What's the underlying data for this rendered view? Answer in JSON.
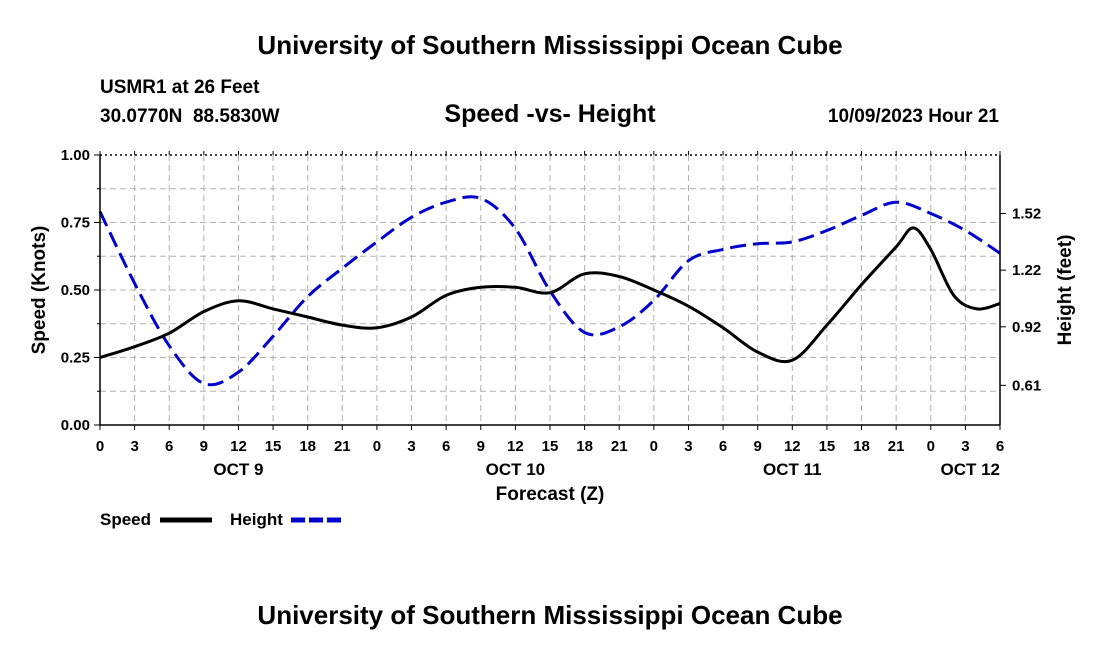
{
  "page": {
    "title_top": "University of Southern Mississippi Ocean Cube",
    "title_bottom": "University of Southern Mississippi Ocean Cube",
    "station": "USMR1 at 26 Feet",
    "coords": "30.0770N  88.5830W",
    "datetime": "10/09/2023 Hour 21"
  },
  "chart_data": {
    "type": "line",
    "title": "Speed -vs- Height",
    "xlabel": "Forecast (Z)",
    "ylabel": "Speed (Knots)",
    "y2label": "Height (feet)",
    "grid": true,
    "x_unit": "forecast hours from OCT 9 00Z",
    "xlim": [
      0,
      78
    ],
    "ylim": [
      0,
      1.0
    ],
    "y2lim": [
      0.4,
      1.83
    ],
    "yticks": [
      "0.00",
      "0.25",
      "0.50",
      "0.75",
      "1.00"
    ],
    "y2ticks": [
      "0.61",
      "0.92",
      "1.22",
      "1.52"
    ],
    "xticks": [
      "0",
      "3",
      "6",
      "9",
      "12",
      "15",
      "18",
      "21",
      "0",
      "3",
      "6",
      "9",
      "12",
      "15",
      "18",
      "21",
      "0",
      "3",
      "6",
      "9",
      "12",
      "15",
      "18",
      "21",
      "0",
      "3",
      "6"
    ],
    "day_labels": [
      {
        "label": "OCT 9",
        "hour": 12
      },
      {
        "label": "OCT 10",
        "hour": 36
      },
      {
        "label": "OCT 11",
        "hour": 60
      },
      {
        "label": "OCT 12",
        "hour": 78
      }
    ],
    "series": [
      {
        "name": "Speed",
        "axis": "left",
        "color": "#000000",
        "style": "solid",
        "x": [
          0,
          3,
          6,
          9,
          12,
          15,
          18,
          21,
          24,
          27,
          30,
          33,
          36,
          39,
          42,
          45,
          48,
          51,
          54,
          57,
          60,
          63,
          66,
          69,
          70.5,
          72,
          74,
          76,
          78
        ],
        "values": [
          0.25,
          0.29,
          0.34,
          0.42,
          0.46,
          0.43,
          0.4,
          0.37,
          0.36,
          0.4,
          0.48,
          0.51,
          0.51,
          0.49,
          0.56,
          0.55,
          0.5,
          0.44,
          0.36,
          0.27,
          0.24,
          0.37,
          0.52,
          0.66,
          0.73,
          0.65,
          0.48,
          0.43,
          0.45
        ]
      },
      {
        "name": "Height",
        "axis": "right",
        "color": "#0000cc",
        "style": "dashed",
        "x": [
          0,
          3,
          6,
          9,
          12,
          15,
          18,
          21,
          24,
          27,
          30,
          33,
          36,
          39,
          42,
          45,
          48,
          51,
          54,
          57,
          60,
          63,
          66,
          69,
          72,
          75,
          78
        ],
        "values": [
          1.53,
          1.15,
          0.82,
          0.62,
          0.68,
          0.87,
          1.08,
          1.23,
          1.37,
          1.5,
          1.58,
          1.6,
          1.44,
          1.11,
          0.89,
          0.92,
          1.06,
          1.27,
          1.33,
          1.36,
          1.37,
          1.43,
          1.51,
          1.58,
          1.52,
          1.43,
          1.31
        ]
      }
    ],
    "legend": {
      "position": "bottom-left",
      "items": [
        "Speed",
        "Height"
      ]
    }
  }
}
